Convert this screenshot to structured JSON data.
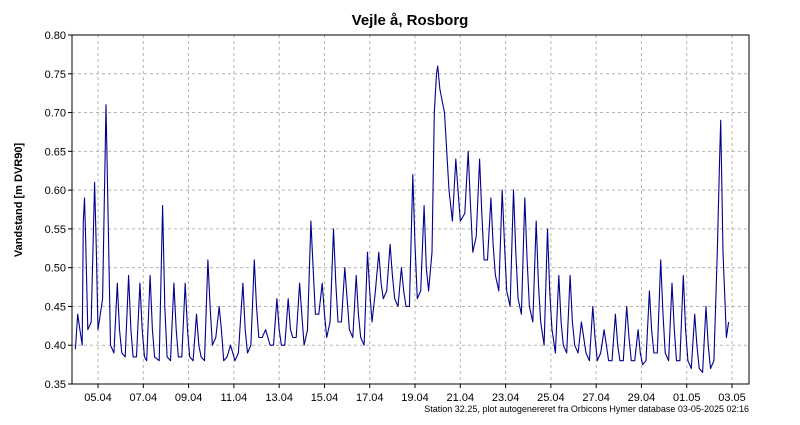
{
  "chart_data": {
    "type": "line",
    "title": "Vejle å, Rosborg",
    "ylabel": "Vandstand [m DVR90]",
    "xlabel": "",
    "footer": "Station 32.25, plot autogenereret fra Orbicons Hymer database 03-05-2025 02:16",
    "ylim": [
      0.35,
      0.8
    ],
    "y_ticks": [
      "0.35",
      "0.40",
      "0.45",
      "0.50",
      "0.55",
      "0.60",
      "0.65",
      "0.70",
      "0.75",
      "0.80"
    ],
    "x_ticks": [
      "05.04",
      "07.04",
      "09.04",
      "11.04",
      "13.04",
      "15.04",
      "17.04",
      "19.04",
      "21.04",
      "23.04",
      "25.04",
      "27.04",
      "29.04",
      "01.05",
      "03.05"
    ],
    "grid": true,
    "line_color": "#00008b",
    "series": [
      {
        "values": [
          [
            4.0,
            0.395
          ],
          [
            4.1,
            0.44
          ],
          [
            4.2,
            0.42
          ],
          [
            4.3,
            0.4
          ],
          [
            4.35,
            0.56
          ],
          [
            4.4,
            0.59
          ],
          [
            4.45,
            0.54
          ],
          [
            4.55,
            0.42
          ],
          [
            4.7,
            0.43
          ],
          [
            4.85,
            0.61
          ],
          [
            4.92,
            0.53
          ],
          [
            5.0,
            0.42
          ],
          [
            5.2,
            0.46
          ],
          [
            5.35,
            0.71
          ],
          [
            5.45,
            0.56
          ],
          [
            5.55,
            0.4
          ],
          [
            5.7,
            0.39
          ],
          [
            5.85,
            0.48
          ],
          [
            5.95,
            0.42
          ],
          [
            6.05,
            0.39
          ],
          [
            6.2,
            0.385
          ],
          [
            6.35,
            0.49
          ],
          [
            6.45,
            0.42
          ],
          [
            6.55,
            0.385
          ],
          [
            6.7,
            0.385
          ],
          [
            6.85,
            0.48
          ],
          [
            6.95,
            0.42
          ],
          [
            7.05,
            0.385
          ],
          [
            7.15,
            0.38
          ],
          [
            7.3,
            0.49
          ],
          [
            7.4,
            0.42
          ],
          [
            7.5,
            0.385
          ],
          [
            7.7,
            0.38
          ],
          [
            7.85,
            0.58
          ],
          [
            7.95,
            0.45
          ],
          [
            8.05,
            0.385
          ],
          [
            8.2,
            0.38
          ],
          [
            8.35,
            0.48
          ],
          [
            8.45,
            0.42
          ],
          [
            8.55,
            0.385
          ],
          [
            8.7,
            0.385
          ],
          [
            8.85,
            0.48
          ],
          [
            8.95,
            0.42
          ],
          [
            9.05,
            0.385
          ],
          [
            9.2,
            0.38
          ],
          [
            9.35,
            0.44
          ],
          [
            9.45,
            0.4
          ],
          [
            9.55,
            0.385
          ],
          [
            9.7,
            0.38
          ],
          [
            9.85,
            0.51
          ],
          [
            9.95,
            0.45
          ],
          [
            10.05,
            0.4
          ],
          [
            10.2,
            0.41
          ],
          [
            10.35,
            0.45
          ],
          [
            10.45,
            0.42
          ],
          [
            10.55,
            0.38
          ],
          [
            10.7,
            0.385
          ],
          [
            10.85,
            0.4
          ],
          [
            10.95,
            0.39
          ],
          [
            11.05,
            0.38
          ],
          [
            11.2,
            0.39
          ],
          [
            11.4,
            0.48
          ],
          [
            11.5,
            0.42
          ],
          [
            11.6,
            0.39
          ],
          [
            11.75,
            0.4
          ],
          [
            11.9,
            0.51
          ],
          [
            12.0,
            0.45
          ],
          [
            12.1,
            0.41
          ],
          [
            12.25,
            0.41
          ],
          [
            12.4,
            0.42
          ],
          [
            12.5,
            0.41
          ],
          [
            12.6,
            0.4
          ],
          [
            12.75,
            0.4
          ],
          [
            12.9,
            0.46
          ],
          [
            13.0,
            0.42
          ],
          [
            13.1,
            0.4
          ],
          [
            13.25,
            0.4
          ],
          [
            13.4,
            0.46
          ],
          [
            13.5,
            0.42
          ],
          [
            13.6,
            0.41
          ],
          [
            13.75,
            0.41
          ],
          [
            13.9,
            0.48
          ],
          [
            14.0,
            0.44
          ],
          [
            14.1,
            0.4
          ],
          [
            14.25,
            0.42
          ],
          [
            14.4,
            0.56
          ],
          [
            14.5,
            0.5
          ],
          [
            14.6,
            0.44
          ],
          [
            14.75,
            0.44
          ],
          [
            14.9,
            0.48
          ],
          [
            15.0,
            0.44
          ],
          [
            15.1,
            0.41
          ],
          [
            15.25,
            0.43
          ],
          [
            15.4,
            0.55
          ],
          [
            15.5,
            0.48
          ],
          [
            15.6,
            0.43
          ],
          [
            15.75,
            0.43
          ],
          [
            15.9,
            0.5
          ],
          [
            16.0,
            0.46
          ],
          [
            16.1,
            0.42
          ],
          [
            16.25,
            0.41
          ],
          [
            16.4,
            0.49
          ],
          [
            16.5,
            0.44
          ],
          [
            16.6,
            0.41
          ],
          [
            16.75,
            0.4
          ],
          [
            16.9,
            0.52
          ],
          [
            17.0,
            0.47
          ],
          [
            17.1,
            0.43
          ],
          [
            17.25,
            0.47
          ],
          [
            17.4,
            0.52
          ],
          [
            17.5,
            0.48
          ],
          [
            17.6,
            0.46
          ],
          [
            17.75,
            0.47
          ],
          [
            17.9,
            0.53
          ],
          [
            18.0,
            0.49
          ],
          [
            18.1,
            0.46
          ],
          [
            18.25,
            0.45
          ],
          [
            18.4,
            0.5
          ],
          [
            18.5,
            0.47
          ],
          [
            18.6,
            0.45
          ],
          [
            18.75,
            0.45
          ],
          [
            18.9,
            0.62
          ],
          [
            19.0,
            0.53
          ],
          [
            19.1,
            0.46
          ],
          [
            19.25,
            0.47
          ],
          [
            19.4,
            0.58
          ],
          [
            19.5,
            0.5
          ],
          [
            19.6,
            0.47
          ],
          [
            19.75,
            0.52
          ],
          [
            19.85,
            0.7
          ],
          [
            19.95,
            0.75
          ],
          [
            20.0,
            0.76
          ],
          [
            20.1,
            0.73
          ],
          [
            20.3,
            0.7
          ],
          [
            20.5,
            0.6
          ],
          [
            20.65,
            0.56
          ],
          [
            20.8,
            0.64
          ],
          [
            20.9,
            0.6
          ],
          [
            21.0,
            0.56
          ],
          [
            21.2,
            0.57
          ],
          [
            21.35,
            0.65
          ],
          [
            21.45,
            0.58
          ],
          [
            21.55,
            0.52
          ],
          [
            21.7,
            0.54
          ],
          [
            21.85,
            0.64
          ],
          [
            21.95,
            0.57
          ],
          [
            22.05,
            0.51
          ],
          [
            22.2,
            0.51
          ],
          [
            22.35,
            0.59
          ],
          [
            22.45,
            0.53
          ],
          [
            22.55,
            0.49
          ],
          [
            22.7,
            0.47
          ],
          [
            22.85,
            0.6
          ],
          [
            22.95,
            0.53
          ],
          [
            23.05,
            0.47
          ],
          [
            23.2,
            0.45
          ],
          [
            23.35,
            0.6
          ],
          [
            23.45,
            0.52
          ],
          [
            23.55,
            0.46
          ],
          [
            23.7,
            0.44
          ],
          [
            23.85,
            0.59
          ],
          [
            23.95,
            0.51
          ],
          [
            24.05,
            0.45
          ],
          [
            24.2,
            0.43
          ],
          [
            24.35,
            0.56
          ],
          [
            24.45,
            0.48
          ],
          [
            24.55,
            0.43
          ],
          [
            24.7,
            0.4
          ],
          [
            24.85,
            0.55
          ],
          [
            24.95,
            0.47
          ],
          [
            25.05,
            0.42
          ],
          [
            25.2,
            0.39
          ],
          [
            25.35,
            0.49
          ],
          [
            25.45,
            0.43
          ],
          [
            25.55,
            0.4
          ],
          [
            25.7,
            0.39
          ],
          [
            25.85,
            0.49
          ],
          [
            25.95,
            0.43
          ],
          [
            26.05,
            0.4
          ],
          [
            26.2,
            0.39
          ],
          [
            26.35,
            0.43
          ],
          [
            26.45,
            0.41
          ],
          [
            26.55,
            0.39
          ],
          [
            26.7,
            0.38
          ],
          [
            26.85,
            0.45
          ],
          [
            26.95,
            0.41
          ],
          [
            27.05,
            0.38
          ],
          [
            27.2,
            0.39
          ],
          [
            27.35,
            0.42
          ],
          [
            27.45,
            0.4
          ],
          [
            27.55,
            0.38
          ],
          [
            27.7,
            0.38
          ],
          [
            27.85,
            0.44
          ],
          [
            27.95,
            0.4
          ],
          [
            28.05,
            0.38
          ],
          [
            28.2,
            0.38
          ],
          [
            28.35,
            0.45
          ],
          [
            28.45,
            0.41
          ],
          [
            28.55,
            0.38
          ],
          [
            28.7,
            0.38
          ],
          [
            28.85,
            0.42
          ],
          [
            28.95,
            0.39
          ],
          [
            29.05,
            0.375
          ],
          [
            29.2,
            0.38
          ],
          [
            29.35,
            0.47
          ],
          [
            29.45,
            0.42
          ],
          [
            29.55,
            0.39
          ],
          [
            29.7,
            0.39
          ],
          [
            29.85,
            0.51
          ],
          [
            29.95,
            0.44
          ],
          [
            30.05,
            0.39
          ],
          [
            30.2,
            0.38
          ],
          [
            30.35,
            0.48
          ],
          [
            30.45,
            0.42
          ],
          [
            30.55,
            0.38
          ],
          [
            30.7,
            0.38
          ],
          [
            30.85,
            0.49
          ],
          [
            30.95,
            0.42
          ],
          [
            31.05,
            0.38
          ],
          [
            31.2,
            0.37
          ],
          [
            31.35,
            0.44
          ],
          [
            31.45,
            0.4
          ],
          [
            31.55,
            0.37
          ],
          [
            31.7,
            0.365
          ],
          [
            31.85,
            0.45
          ],
          [
            31.95,
            0.4
          ],
          [
            32.05,
            0.37
          ],
          [
            32.2,
            0.38
          ],
          [
            32.35,
            0.52
          ],
          [
            32.45,
            0.64
          ],
          [
            32.5,
            0.69
          ],
          [
            32.6,
            0.52
          ],
          [
            32.75,
            0.41
          ],
          [
            32.85,
            0.43
          ]
        ]
      }
    ]
  }
}
